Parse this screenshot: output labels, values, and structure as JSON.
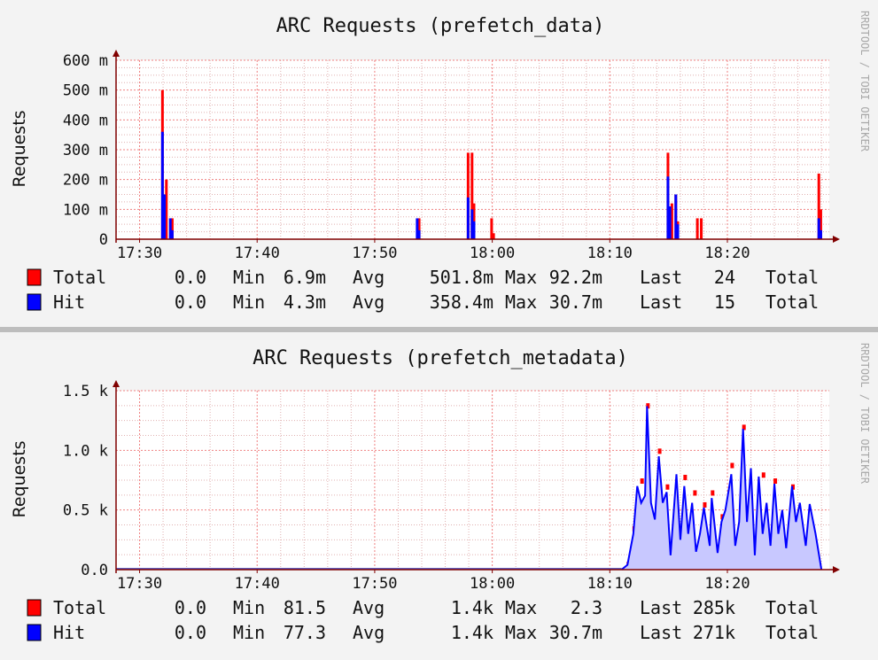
{
  "colors": {
    "total": "#ff0000",
    "hit": "#0000ff",
    "hit_fill": "#c8c8ff",
    "grid_minor": "#e0b0b0",
    "grid_major": "#f08080",
    "axis": "#800000",
    "background": "#ffffff"
  },
  "side_label": "RRDTOOL / TOBI OETIKER",
  "chart_data": [
    {
      "type": "area",
      "title": "ARC Requests (prefetch_data)",
      "ylabel": "Requests",
      "xlabel": "",
      "x_ticks": [
        "17:30",
        "17:40",
        "17:50",
        "18:00",
        "18:10",
        "18:20"
      ],
      "y_ticks": [
        "0",
        "100 m",
        "200 m",
        "300 m",
        "400 m",
        "500 m",
        "600 m"
      ],
      "ylim": [
        0,
        0.6
      ],
      "grid": true,
      "series": [
        {
          "name": "Total",
          "color": "#ff0000",
          "points": [
            [
              "17:31:50",
              0.5
            ],
            [
              "17:32:10",
              0.2
            ],
            [
              "17:32:40",
              0.07
            ],
            [
              "17:53:40",
              0.07
            ],
            [
              "17:57:50",
              0.29
            ],
            [
              "17:58:10",
              0.29
            ],
            [
              "17:58:20",
              0.12
            ],
            [
              "17:59:50",
              0.07
            ],
            [
              "18:00:00",
              0.02
            ],
            [
              "18:14:50",
              0.29
            ],
            [
              "18:15:10",
              0.12
            ],
            [
              "18:15:30",
              0.15
            ],
            [
              "18:15:40",
              0.06
            ],
            [
              "18:17:20",
              0.07
            ],
            [
              "18:17:40",
              0.07
            ],
            [
              "18:27:40",
              0.22
            ],
            [
              "18:27:50",
              0.1
            ]
          ]
        },
        {
          "name": "Hit",
          "color": "#0000ff",
          "points": [
            [
              "17:31:50",
              0.36
            ],
            [
              "17:32:00",
              0.15
            ],
            [
              "17:32:30",
              0.07
            ],
            [
              "17:32:40",
              0.03
            ],
            [
              "17:53:30",
              0.07
            ],
            [
              "17:53:40",
              0.03
            ],
            [
              "17:57:50",
              0.14
            ],
            [
              "17:58:10",
              0.1
            ],
            [
              "17:58:20",
              0.06
            ],
            [
              "18:14:50",
              0.21
            ],
            [
              "18:15:00",
              0.11
            ],
            [
              "18:15:30",
              0.15
            ],
            [
              "18:15:40",
              0.05
            ],
            [
              "18:27:40",
              0.07
            ],
            [
              "18:27:50",
              0.03
            ]
          ]
        }
      ],
      "legend": {
        "placement": "bottom",
        "rows": [
          {
            "name": "Total",
            "min": "0.0",
            "min_label": "Min",
            "avg": "6.9m",
            "avg_label": "Avg",
            "max": "501.8m",
            "max_label": "Max",
            "last": "92.2m",
            "last_label": "Last",
            "total": "24",
            "total_label": "Total"
          },
          {
            "name": "Hit",
            "min": "0.0",
            "min_label": "Min",
            "avg": "4.3m",
            "avg_label": "Avg",
            "max": "358.4m",
            "max_label": "Max",
            "last": "30.7m",
            "last_label": "Last",
            "total": "15",
            "total_label": "Total"
          }
        ]
      }
    },
    {
      "type": "area",
      "title": "ARC Requests (prefetch_metadata)",
      "ylabel": "Requests",
      "xlabel": "",
      "x_ticks": [
        "17:30",
        "17:40",
        "17:50",
        "18:00",
        "18:10",
        "18:20"
      ],
      "y_ticks": [
        "0.0",
        "0.5 k",
        "1.0 k",
        "1.5 k"
      ],
      "ylim": [
        0,
        1500
      ],
      "grid": true,
      "series": [
        {
          "name": "Total",
          "color": "#ff0000",
          "points": [
            [
              "18:11:30",
              50
            ],
            [
              "18:12:00",
              350
            ],
            [
              "18:12:40",
              750
            ],
            [
              "18:13:10",
              1380
            ],
            [
              "18:14:10",
              1000
            ],
            [
              "18:14:50",
              700
            ],
            [
              "18:16:20",
              780
            ],
            [
              "18:17:10",
              650
            ],
            [
              "18:18:00",
              550
            ],
            [
              "18:18:40",
              650
            ],
            [
              "18:19:30",
              450
            ],
            [
              "18:20:20",
              880
            ],
            [
              "18:21:20",
              1200
            ],
            [
              "18:23:00",
              800
            ],
            [
              "18:24:00",
              750
            ],
            [
              "18:25:30",
              700
            ]
          ]
        },
        {
          "name": "Hit",
          "color": "#0000ff",
          "points": [
            [
              "18:11:00",
              0
            ],
            [
              "18:11:30",
              40
            ],
            [
              "18:12:00",
              300
            ],
            [
              "18:12:20",
              700
            ],
            [
              "18:12:40",
              560
            ],
            [
              "18:13:00",
              620
            ],
            [
              "18:13:10",
              1370
            ],
            [
              "18:13:30",
              560
            ],
            [
              "18:13:50",
              420
            ],
            [
              "18:14:10",
              950
            ],
            [
              "18:14:30",
              560
            ],
            [
              "18:14:50",
              650
            ],
            [
              "18:15:10",
              120
            ],
            [
              "18:15:40",
              800
            ],
            [
              "18:16:00",
              250
            ],
            [
              "18:16:20",
              700
            ],
            [
              "18:16:40",
              300
            ],
            [
              "18:17:00",
              560
            ],
            [
              "18:17:20",
              150
            ],
            [
              "18:17:40",
              300
            ],
            [
              "18:18:00",
              520
            ],
            [
              "18:18:30",
              200
            ],
            [
              "18:18:40",
              600
            ],
            [
              "18:19:10",
              140
            ],
            [
              "18:19:30",
              400
            ],
            [
              "18:19:50",
              500
            ],
            [
              "18:20:20",
              800
            ],
            [
              "18:20:40",
              200
            ],
            [
              "18:21:00",
              400
            ],
            [
              "18:21:20",
              1180
            ],
            [
              "18:21:40",
              400
            ],
            [
              "18:22:00",
              850
            ],
            [
              "18:22:20",
              120
            ],
            [
              "18:22:40",
              780
            ],
            [
              "18:23:00",
              300
            ],
            [
              "18:23:20",
              560
            ],
            [
              "18:23:40",
              200
            ],
            [
              "18:24:00",
              720
            ],
            [
              "18:24:20",
              300
            ],
            [
              "18:24:40",
              500
            ],
            [
              "18:25:00",
              180
            ],
            [
              "18:25:30",
              700
            ],
            [
              "18:25:50",
              400
            ],
            [
              "18:26:10",
              560
            ],
            [
              "18:26:40",
              200
            ],
            [
              "18:27:00",
              550
            ],
            [
              "18:27:30",
              300
            ],
            [
              "18:28:00",
              0
            ]
          ]
        }
      ],
      "legend": {
        "placement": "bottom",
        "rows": [
          {
            "name": "Total",
            "min": "0.0",
            "min_label": "Min",
            "avg": "81.5",
            "avg_label": "Avg",
            "max": "1.4k",
            "max_label": "Max",
            "last": "2.3",
            "last_label": "Last",
            "total": "285k",
            "total_label": "Total"
          },
          {
            "name": "Hit",
            "min": "0.0",
            "min_label": "Min",
            "avg": "77.3",
            "avg_label": "Avg",
            "max": "1.4k",
            "max_label": "Max",
            "last": "30.7m",
            "last_label": "Last",
            "total": "271k",
            "total_label": "Total"
          }
        ]
      }
    }
  ]
}
